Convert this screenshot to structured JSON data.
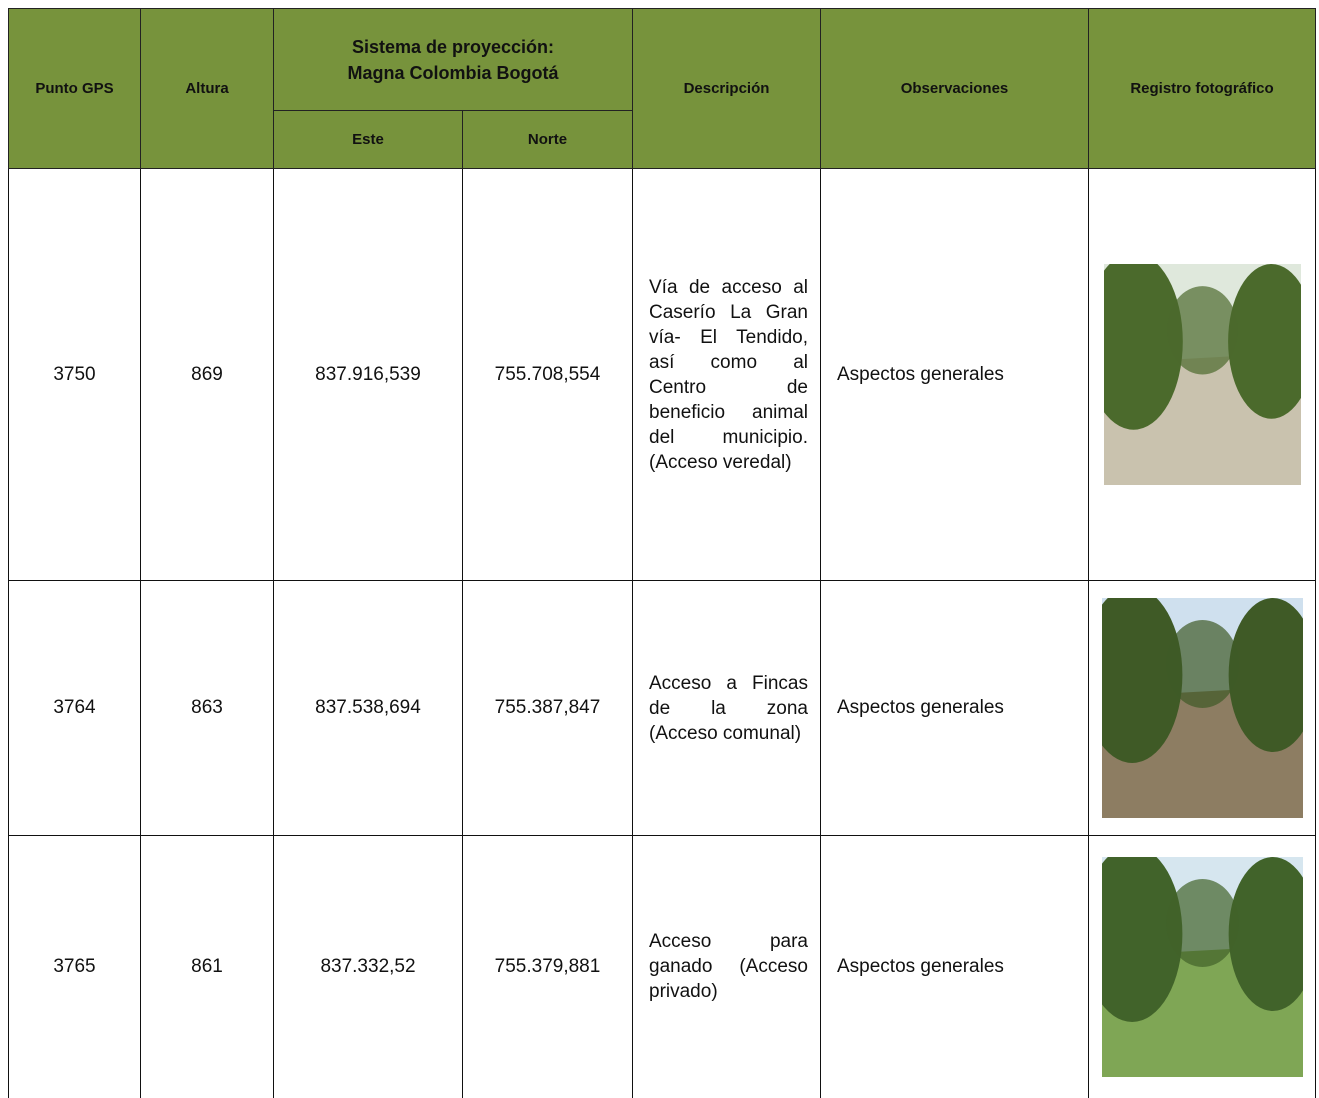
{
  "table": {
    "headers": {
      "punto": "Punto GPS",
      "altura": "Altura",
      "sistema": [
        "Sistema de proyección:",
        "Magna Colombia Bogotá"
      ],
      "este": "Este",
      "norte": "Norte",
      "descripcion": "Descripción",
      "observaciones": "Observaciones",
      "registro": "Registro fotográfico"
    },
    "rows": [
      [
        "3750",
        "869",
        "837.916,539",
        "755.708,554",
        "Vía de acceso al Caserío La Gran vía- El Tendido, así como al Centro de beneficio animal del municipio. (Acceso veredal)",
        "Aspectos generales"
      ],
      [
        "3764",
        "863",
        "837.538,694",
        "755.387,847",
        "Acceso a Fincas de la zona (Acceso comunal)",
        "Aspectos generales"
      ],
      [
        "3765",
        "861",
        "837.332,52",
        "755.379,881",
        "Acceso para ganado (Acceso privado)",
        "Aspectos generales"
      ]
    ]
  }
}
